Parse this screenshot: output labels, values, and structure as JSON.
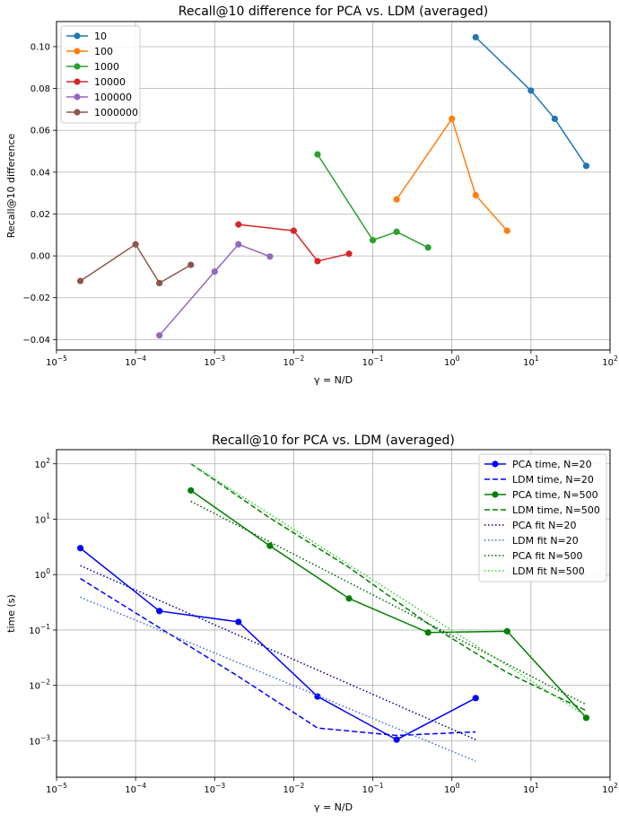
{
  "chart_data": [
    {
      "type": "line",
      "title": "Recall@10 difference for PCA vs. LDM (averaged)",
      "xlabel": "γ = N/D",
      "ylabel": "Recall@10 difference",
      "xscale": "log",
      "xlim": [
        1e-05,
        100
      ],
      "ylim": [
        -0.045,
        0.112
      ],
      "xticks": [
        1e-05,
        0.0001,
        0.001,
        0.01,
        0.1,
        1,
        10,
        100
      ],
      "xtick_labels": [
        {
          "base": "10",
          "exp": "−5"
        },
        {
          "base": "10",
          "exp": "−4"
        },
        {
          "base": "10",
          "exp": "−3"
        },
        {
          "base": "10",
          "exp": "−2"
        },
        {
          "base": "10",
          "exp": "−1"
        },
        {
          "base": "10",
          "exp": "0"
        },
        {
          "base": "10",
          "exp": "1"
        },
        {
          "base": "10",
          "exp": "2"
        }
      ],
      "yticks": [
        -0.04,
        -0.02,
        0.0,
        0.02,
        0.04,
        0.06,
        0.08,
        0.1
      ],
      "ytick_labels": [
        "−0.04",
        "−0.02",
        "0.00",
        "0.02",
        "0.04",
        "0.06",
        "0.08",
        "0.10"
      ],
      "grid": true,
      "legend_position": "top-left",
      "series": [
        {
          "name": "10",
          "color": "#1f77b4",
          "style": "solid",
          "marker": true,
          "x": [
            2,
            10,
            20,
            50
          ],
          "y": [
            0.1045,
            0.079,
            0.0655,
            0.043
          ]
        },
        {
          "name": "100",
          "color": "#ff7f0e",
          "style": "solid",
          "marker": true,
          "x": [
            0.2,
            1,
            2,
            5
          ],
          "y": [
            0.027,
            0.0655,
            0.029,
            0.012
          ]
        },
        {
          "name": "1000",
          "color": "#2ca02c",
          "style": "solid",
          "marker": true,
          "x": [
            0.02,
            0.1,
            0.2,
            0.5
          ],
          "y": [
            0.0485,
            0.0075,
            0.0115,
            0.004
          ]
        },
        {
          "name": "10000",
          "color": "#d62728",
          "style": "solid",
          "marker": true,
          "x": [
            0.002,
            0.01,
            0.02,
            0.05
          ],
          "y": [
            0.015,
            0.012,
            -0.0025,
            0.001
          ]
        },
        {
          "name": "100000",
          "color": "#9467bd",
          "style": "solid",
          "marker": true,
          "x": [
            0.0002,
            0.001,
            0.002,
            0.005
          ],
          "y": [
            -0.038,
            -0.0075,
            0.0055,
            -0.0003
          ]
        },
        {
          "name": "1000000",
          "color": "#8c564b",
          "style": "solid",
          "marker": true,
          "x": [
            2e-05,
            0.0001,
            0.0002,
            0.0005
          ],
          "y": [
            -0.012,
            0.0055,
            -0.013,
            -0.0043
          ]
        }
      ]
    },
    {
      "type": "line",
      "title": "Recall@10 for PCA vs. LDM (averaged)",
      "xlabel": "γ = N/D",
      "ylabel": "time (s)",
      "xscale": "log",
      "yscale": "log",
      "xlim": [
        1e-05,
        100
      ],
      "ylim": [
        0.00022,
        180
      ],
      "xticks": [
        1e-05,
        0.0001,
        0.001,
        0.01,
        0.1,
        1,
        10,
        100
      ],
      "xtick_labels": [
        {
          "base": "10",
          "exp": "−5"
        },
        {
          "base": "10",
          "exp": "−4"
        },
        {
          "base": "10",
          "exp": "−3"
        },
        {
          "base": "10",
          "exp": "−2"
        },
        {
          "base": "10",
          "exp": "−1"
        },
        {
          "base": "10",
          "exp": "0"
        },
        {
          "base": "10",
          "exp": "1"
        },
        {
          "base": "10",
          "exp": "2"
        }
      ],
      "yticks": [
        0.001,
        0.01,
        0.1,
        1,
        10,
        100
      ],
      "ytick_labels": [
        {
          "base": "10",
          "exp": "−3"
        },
        {
          "base": "10",
          "exp": "−2"
        },
        {
          "base": "10",
          "exp": "−1"
        },
        {
          "base": "10",
          "exp": "0"
        },
        {
          "base": "10",
          "exp": "1"
        },
        {
          "base": "10",
          "exp": "2"
        }
      ],
      "grid": true,
      "legend_position": "top-right",
      "series": [
        {
          "name": "PCA time, N=20",
          "color": "#0000ff",
          "style": "solid",
          "marker": true,
          "x": [
            2e-05,
            0.0002,
            0.002,
            0.02,
            0.2,
            2
          ],
          "y": [
            3.0,
            0.22,
            0.14,
            0.0063,
            0.00105,
            0.0059
          ]
        },
        {
          "name": "LDM time, N=20",
          "color": "#0000ff",
          "style": "dashed",
          "marker": false,
          "x": [
            2e-05,
            0.0002,
            0.002,
            0.02,
            0.2,
            2
          ],
          "y": [
            0.85,
            0.11,
            0.0145,
            0.0017,
            0.00125,
            0.00145
          ]
        },
        {
          "name": "PCA time, N=500",
          "color": "#008000",
          "style": "solid",
          "marker": true,
          "x": [
            0.0005,
            0.005,
            0.05,
            0.5,
            5,
            50
          ],
          "y": [
            33,
            3.3,
            0.37,
            0.09,
            0.095,
            0.0026
          ]
        },
        {
          "name": "LDM time, N=500",
          "color": "#008000",
          "style": "dashed",
          "marker": false,
          "x": [
            0.0005,
            0.005,
            0.05,
            0.5,
            5,
            50
          ],
          "y": [
            100,
            10.5,
            1.35,
            0.13,
            0.017,
            0.0035
          ]
        },
        {
          "name": "PCA fit N=20",
          "color": "#00008b",
          "style": "dotted",
          "marker": false,
          "x": [
            2e-05,
            2
          ],
          "y": [
            1.45,
            0.00105
          ]
        },
        {
          "name": "LDM fit N=20",
          "color": "#4169e1",
          "style": "dotted",
          "marker": false,
          "x": [
            2e-05,
            2
          ],
          "y": [
            0.39,
            0.00043
          ]
        },
        {
          "name": "PCA fit N=500",
          "color": "#006400",
          "style": "dotted",
          "marker": false,
          "x": [
            0.0005,
            50
          ],
          "y": [
            21,
            0.0045
          ]
        },
        {
          "name": "LDM fit N=500",
          "color": "#32cd32",
          "style": "dotted",
          "marker": false,
          "x": [
            0.0005,
            50
          ],
          "y": [
            100,
            0.0028
          ]
        }
      ]
    }
  ]
}
